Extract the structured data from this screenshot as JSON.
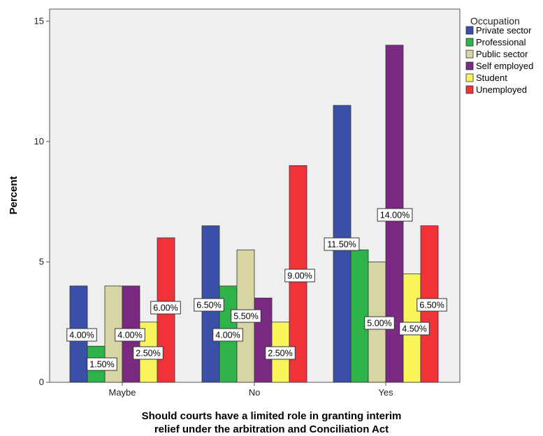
{
  "chart_data": {
    "type": "bar",
    "categories": [
      "Maybe",
      "No",
      "Yes"
    ],
    "series": [
      {
        "name": "Private sector",
        "color": "#3a50a8",
        "values": [
          4.0,
          6.5,
          11.5
        ],
        "labels": [
          "4.00%",
          "6.50%",
          "11.50%"
        ]
      },
      {
        "name": "Professional",
        "color": "#2db34a",
        "values": [
          1.5,
          4.0,
          5.5
        ],
        "labels": [
          "1.50%",
          "4.00%",
          ""
        ]
      },
      {
        "name": "Public sector",
        "color": "#d8d5a4",
        "values": [
          4.0,
          5.5,
          5.0
        ],
        "labels": [
          "",
          "5.50%",
          "5.00%"
        ]
      },
      {
        "name": "Self employed",
        "color": "#7a2a82",
        "values": [
          4.0,
          3.5,
          14.0
        ],
        "labels": [
          "4.00%",
          "",
          "14.00%"
        ]
      },
      {
        "name": "Student",
        "color": "#f8f55a",
        "values": [
          2.5,
          2.5,
          4.5
        ],
        "labels": [
          "2.50%",
          "2.50%",
          "4.50%"
        ]
      },
      {
        "name": "Unemployed",
        "color": "#ef3339",
        "values": [
          6.0,
          9.0,
          6.5
        ],
        "labels": [
          "6.00%",
          "9.00%",
          "6.50%"
        ]
      }
    ],
    "ylabel": "Percent",
    "xlabel_lines": [
      "Should courts have a limited role in granting interim",
      "relief under the arbitration and Conciliation Act"
    ],
    "yticks": [
      "0",
      "5",
      "10",
      "15"
    ],
    "ylim": [
      0,
      15.5
    ],
    "legend_title": "Occupation",
    "legend_position": "top-right",
    "grid": false,
    "plot_background": "#efefef"
  }
}
